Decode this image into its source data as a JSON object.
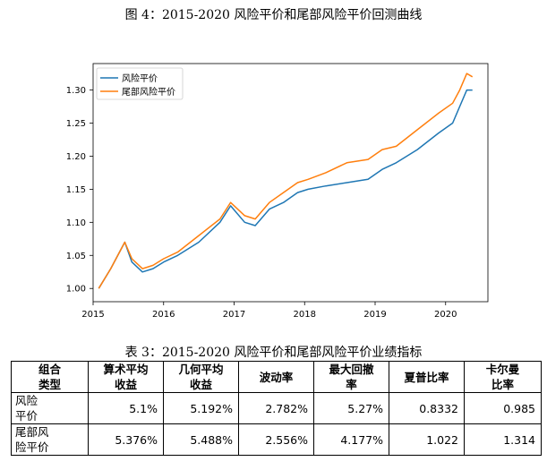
{
  "figure_caption": "图 4：2015-2020 风险平价和尾部风险平价回测曲线",
  "chart_data": {
    "type": "line",
    "title": "",
    "xlabel": "",
    "ylabel": "",
    "xlim": [
      2015.0,
      2020.6
    ],
    "ylim": [
      0.98,
      1.34
    ],
    "x_ticks": [
      2015,
      2016,
      2017,
      2018,
      2019,
      2020
    ],
    "x_tick_labels": [
      "2015",
      "2016",
      "2017",
      "2018",
      "2019",
      "2020"
    ],
    "y_ticks": [
      1.0,
      1.05,
      1.1,
      1.15,
      1.2,
      1.25,
      1.3
    ],
    "y_tick_labels": [
      "1.00",
      "1.05",
      "1.10",
      "1.15",
      "1.20",
      "1.25",
      "1.30"
    ],
    "grid": false,
    "legend_position": "top-left",
    "x": [
      2015.08,
      2015.25,
      2015.45,
      2015.55,
      2015.7,
      2015.85,
      2016.0,
      2016.2,
      2016.5,
      2016.8,
      2016.95,
      2017.15,
      2017.3,
      2017.5,
      2017.7,
      2017.9,
      2018.05,
      2018.3,
      2018.6,
      2018.9,
      2019.1,
      2019.3,
      2019.6,
      2019.9,
      2020.1,
      2020.2,
      2020.3,
      2020.38
    ],
    "series": [
      {
        "name": "风险平价",
        "color": "#1f77b4",
        "values": [
          1.0,
          1.03,
          1.07,
          1.04,
          1.025,
          1.03,
          1.04,
          1.05,
          1.07,
          1.1,
          1.125,
          1.1,
          1.095,
          1.12,
          1.13,
          1.145,
          1.15,
          1.155,
          1.16,
          1.165,
          1.18,
          1.19,
          1.21,
          1.235,
          1.25,
          1.275,
          1.3,
          1.3
        ]
      },
      {
        "name": "尾部风险平价",
        "color": "#ff7f0e",
        "values": [
          1.0,
          1.03,
          1.07,
          1.045,
          1.03,
          1.035,
          1.045,
          1.055,
          1.08,
          1.105,
          1.13,
          1.11,
          1.105,
          1.13,
          1.145,
          1.16,
          1.165,
          1.175,
          1.19,
          1.195,
          1.21,
          1.215,
          1.24,
          1.265,
          1.28,
          1.3,
          1.325,
          1.32
        ]
      }
    ]
  },
  "table": {
    "caption": "表 3：2015-2020 风险平价和尾部风险平价业绩指标",
    "headers": [
      "组合\n类型",
      "算术平均\n收益",
      "几何平均\n收益",
      "波动率",
      "最大回撤\n率",
      "夏普比率",
      "卡尔曼\n比率"
    ],
    "rows": [
      [
        "风险\n平价",
        "5.1%",
        "5.192%",
        "2.782%",
        "5.27%",
        "0.8332",
        "0.985"
      ],
      [
        "尾部风\n险平价",
        "5.376%",
        "5.488%",
        "2.556%",
        "4.177%",
        "1.022",
        "1.314"
      ]
    ]
  }
}
